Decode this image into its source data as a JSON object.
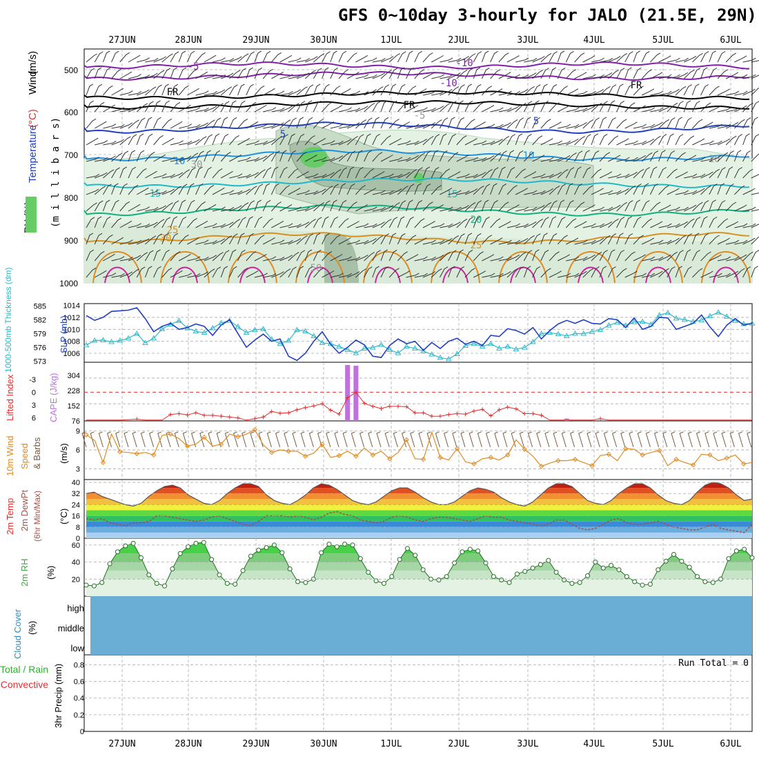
{
  "title": "GFS 0~10day 3-hourly for JALO (21.5E, 29N)",
  "colors": {
    "red": "#e03030",
    "orange": "#e08a20",
    "cyan": "#30b8c8",
    "blue": "#2040c0",
    "purple": "#c070e0",
    "green": "#30b030",
    "cloud": "#6aaed6",
    "violet": "#8020a8"
  },
  "dates": [
    "27JUN",
    "28JUN",
    "29JUN",
    "30JUN",
    "1JUL",
    "2JUL",
    "3JUL",
    "4JUL",
    "5JUL",
    "6JUL"
  ],
  "chart_data": [
    {
      "panel": "sounding",
      "type": "heatmap",
      "ylabel_parts": [
        "RH (%)",
        "Temperature",
        "(°C)",
        "Wind",
        "(m/s)"
      ],
      "ylabel_unit": "(m i l l i b a r s)",
      "yticks": [
        "500",
        "600",
        "700",
        "800",
        "900",
        "1000"
      ],
      "contour_labels": [
        "-5",
        "-10",
        "-5",
        "FR",
        "FR",
        "FR",
        "5",
        "5",
        "10",
        "10",
        "15",
        "15",
        "20",
        "25",
        "25",
        "-10",
        "30",
        "30",
        "50",
        "10"
      ]
    },
    {
      "panel": "slp_thickness",
      "type": "line",
      "ylabel_left": "1000-500mb Thickness (dm)",
      "ylabel_right": "SLP (mb)",
      "yticks_thickness": [
        "585",
        "582",
        "579",
        "576",
        "573"
      ],
      "yticks_slp": [
        "1014",
        "1012",
        "1010",
        "1008",
        "1006"
      ],
      "series": [
        {
          "name": "SLP (mb)",
          "values": [
            1012.3,
            1011.5,
            1012.0,
            1013.0,
            1013.1,
            1013.2,
            1013.6,
            1011.8,
            1009.6,
            1010.5,
            1011.0,
            1010.0,
            1010.3,
            1010.9,
            1010.5,
            1009.0,
            1010.7,
            1011.6,
            1009.3,
            1007.0,
            1008.2,
            1009.2,
            1008.0,
            1008.4,
            1005.5,
            1004.8,
            1006.0,
            1008.0,
            1009.6,
            1007.5,
            1006.0,
            1007.0,
            1008.2,
            1007.4,
            1005.5,
            1005.3,
            1007.3,
            1008.4,
            1007.6,
            1008.0,
            1006.5,
            1007.8,
            1006.8,
            1008.0,
            1008.5,
            1007.5,
            1008.0,
            1007.3,
            1009.0,
            1008.8,
            1010.1,
            1009.8,
            1009.2,
            1010.3,
            1008.4,
            1009.8,
            1010.9,
            1011.5,
            1011.0,
            1011.6,
            1011.0,
            1010.9,
            1011.8,
            1011.6,
            1010.3,
            1011.9,
            1010.0,
            1010.5,
            1012.0,
            1011.9,
            1010.0,
            1010.5,
            1011.0,
            1012.4,
            1010.4,
            1008.8,
            1010.7,
            1011.8,
            1010.7,
            1011.0
          ]
        },
        {
          "name": "Thickness (dm)",
          "values": [
            576.5,
            577.5,
            577.6,
            577.2,
            577.5,
            578.0,
            579.0,
            577.0,
            578.0,
            580.0,
            581.0,
            581.8,
            580.2,
            579.5,
            579.2,
            580.2,
            581.3,
            581.8,
            580.5,
            579.2,
            579.8,
            580.0,
            577.8,
            576.8,
            577.5,
            579.8,
            579.5,
            578.5,
            577.0,
            576.8,
            576.2,
            575.5,
            574.8,
            575.8,
            576.0,
            576.6,
            575.5,
            574.8,
            576.2,
            575.8,
            575.2,
            574.5,
            573.8,
            573.5,
            574.6,
            576.4,
            576.8,
            576.2,
            576.8,
            575.8,
            576.2,
            575.6,
            576.0,
            577.2,
            579.0,
            579.2,
            578.9,
            578.5,
            579.0,
            579.0,
            579.4,
            579.8,
            580.8,
            581.4,
            580.8,
            581.5,
            581.6,
            581.0,
            583.0,
            583.5,
            582.3,
            582.0,
            581.6,
            581.9,
            582.8,
            583.6,
            582.7,
            581.8,
            581.1,
            581.2
          ]
        }
      ]
    },
    {
      "panel": "cape_li",
      "type": "bar",
      "ylabel_left": "Lifted Index",
      "ylabel_right": "CAPE (J/kg)",
      "yticks_li": [
        "-3",
        "0",
        "3",
        "6"
      ],
      "yticks_cape": [
        "304",
        "228",
        "152",
        "76"
      ],
      "series": [
        {
          "name": "Lifted Index",
          "values": [
            6.5,
            6.5,
            6.5,
            6.5,
            6.5,
            6.4,
            6.3,
            6.5,
            6.5,
            6.5,
            5.2,
            5.0,
            5.3,
            4.8,
            5.4,
            5.4,
            5.6,
            5.8,
            6.0,
            6.5,
            6.2,
            5.8,
            4.5,
            4.9,
            4.8,
            4.1,
            3.6,
            3.2,
            2.7,
            4.2,
            5.1,
            1.3,
            0.0,
            2.6,
            3.3,
            3.8,
            3.3,
            3.3,
            3.4,
            4.8,
            4.8,
            5.6,
            5.6,
            5.2,
            5.0,
            5.1,
            4.4,
            4.0,
            5.5,
            4.1,
            3.5,
            3.9,
            5.0,
            5.0,
            5.4,
            6.5,
            6.5,
            6.5,
            6.5,
            6.5,
            6.5,
            6.2,
            6.5,
            6.5,
            6.5,
            6.5,
            6.5,
            6.5,
            6.5,
            6.5,
            6.5,
            6.5,
            6.5,
            6.5,
            6.5,
            6.5,
            6.5,
            6.5,
            6.5,
            6.5
          ]
        },
        {
          "name": "CAPE (J/kg)",
          "values": [
            0,
            0,
            0,
            0,
            0,
            0,
            0,
            0,
            0,
            0,
            0,
            0,
            0,
            0,
            0,
            0,
            0,
            0,
            0,
            0,
            0,
            0,
            0,
            0,
            0,
            0,
            0,
            0,
            0,
            0,
            0,
            290,
            286,
            0,
            0,
            0,
            0,
            0,
            0,
            0,
            0,
            0,
            0,
            0,
            0,
            0,
            0,
            0,
            0,
            0,
            0,
            0,
            0,
            0,
            0,
            0,
            0,
            12,
            0,
            0,
            0,
            0,
            0,
            0,
            0,
            0,
            0,
            0,
            0,
            0,
            0,
            0,
            0,
            0,
            0,
            0,
            0,
            0,
            0,
            0
          ]
        }
      ]
    },
    {
      "panel": "wind10m",
      "type": "line",
      "ylabel": "10m Wind Speed & Barbs",
      "yunit": "(m/s)",
      "yticks": [
        "9",
        "6",
        "3"
      ],
      "series": [
        {
          "name": "10m Wind Speed (m/s)",
          "values": [
            8.4,
            7.5,
            4.0,
            8.5,
            5.7,
            5.6,
            5.4,
            5.6,
            5.2,
            8.3,
            8.5,
            7.8,
            6.6,
            6.9,
            8.0,
            6.6,
            6.9,
            8.5,
            8.1,
            8.5,
            9.2,
            6.8,
            5.6,
            6.0,
            5.8,
            5.8,
            5.0,
            5.5,
            6.9,
            4.8,
            5.1,
            5.8,
            5.0,
            6.3,
            5.2,
            5.8,
            4.6,
            5.6,
            7.6,
            4.6,
            4.5,
            8.8,
            4.8,
            4.4,
            6.2,
            4.1,
            3.8,
            4.6,
            4.8,
            4.4,
            5.2,
            7.6,
            6.1,
            5.0,
            3.4,
            3.9,
            4.3,
            4.3,
            4.5,
            4.0,
            3.5,
            5.1,
            5.3,
            4.3,
            6.2,
            6.1,
            5.2,
            5.6,
            5.9,
            3.5,
            4.5,
            4.0,
            3.6,
            5.3,
            5.2,
            4.3,
            4.7,
            5.2,
            3.8,
            4.0
          ]
        }
      ]
    },
    {
      "panel": "temp2m",
      "type": "area",
      "ylabel": "2m Temp 2m DewPt (6hr Min/Max)",
      "yunit": "(°C)",
      "yticks": [
        "40",
        "32",
        "24",
        "16",
        "8",
        "0"
      ],
      "series": [
        {
          "name": "2m Temp",
          "values": [
            32,
            33,
            30,
            28,
            26,
            24,
            23,
            25,
            30,
            34,
            37,
            38,
            36,
            31,
            28,
            25,
            24,
            27,
            32,
            36,
            39,
            39,
            37,
            31,
            27,
            25,
            24,
            27,
            31,
            36,
            39,
            38,
            35,
            31,
            27,
            25,
            24,
            26,
            30,
            34,
            36,
            36,
            33,
            29,
            26,
            24,
            24,
            26,
            30,
            34,
            36,
            35,
            33,
            29,
            26,
            24,
            23,
            26,
            31,
            36,
            39,
            39,
            37,
            32,
            27,
            25,
            24,
            27,
            32,
            36,
            39,
            39,
            36,
            31,
            27,
            25,
            24,
            27,
            33,
            38,
            40,
            39,
            36,
            31,
            27,
            28
          ]
        },
        {
          "name": "2m DewPt",
          "values": [
            14,
            13,
            14,
            11,
            10,
            9,
            11,
            11,
            12,
            16,
            16,
            15,
            14,
            13,
            12,
            13,
            15,
            16,
            14,
            12,
            10,
            9,
            12,
            16,
            16,
            16,
            15,
            16,
            15,
            13,
            15,
            18,
            19,
            17,
            16,
            13,
            12,
            11,
            12,
            15,
            16,
            15,
            13,
            12,
            14,
            15,
            15,
            14,
            13,
            12,
            14,
            16,
            15,
            15,
            13,
            12,
            11,
            10,
            9,
            10,
            13,
            13,
            10,
            7,
            6,
            7,
            10,
            13,
            14,
            11,
            10,
            10,
            11,
            12,
            10,
            8,
            7,
            6,
            6,
            8,
            10,
            7,
            6,
            5,
            4,
            10
          ]
        }
      ]
    },
    {
      "panel": "rh2m",
      "type": "area",
      "ylabel": "2m RH",
      "yunit": "(%)",
      "yticks": [
        "60",
        "40",
        "20"
      ],
      "series": [
        {
          "name": "2m RH (%)",
          "values": [
            13,
            12,
            16,
            38,
            52,
            59,
            62,
            45,
            25,
            15,
            12,
            32,
            50,
            58,
            62,
            63,
            43,
            25,
            15,
            14,
            30,
            47,
            54,
            57,
            60,
            51,
            32,
            17,
            16,
            20,
            51,
            61,
            58,
            61,
            60,
            44,
            28,
            18,
            15,
            23,
            43,
            56,
            48,
            31,
            20,
            19,
            23,
            39,
            52,
            55,
            53,
            39,
            23,
            19,
            16,
            26,
            29,
            33,
            37,
            42,
            28,
            19,
            15,
            16,
            24,
            40,
            33,
            36,
            31,
            23,
            17,
            13,
            14,
            31,
            41,
            49,
            41,
            34,
            23,
            17,
            16,
            20,
            44,
            53,
            55,
            45
          ]
        }
      ]
    },
    {
      "panel": "cloud",
      "type": "area",
      "ylabel": "Cloud Cover",
      "yunit": "(%)",
      "levels": [
        "high",
        "middle",
        "low"
      ]
    },
    {
      "panel": "precip",
      "type": "bar",
      "ylabel_left": "Total / Rain Convective",
      "ylabel": "3hr Precip (mm)",
      "run_total": "Run Total = 0",
      "yticks": [
        "0.8",
        "0.6",
        "0.4",
        "0.2",
        "0"
      ]
    }
  ]
}
